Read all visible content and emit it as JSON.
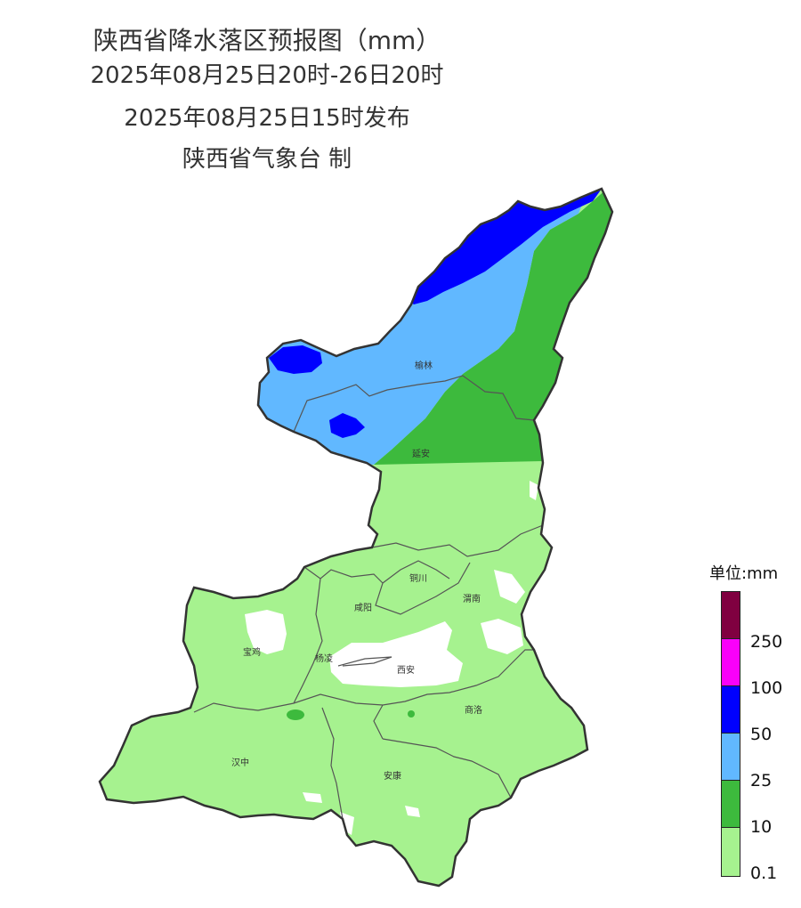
{
  "header": {
    "title": "陕西省降水落区预报图（mm）",
    "period": "2025年08月25日20时-26日20时",
    "issued": "2025年08月25日15时发布",
    "agency": "陕西省气象台 制"
  },
  "cities": [
    "榆林",
    "延安",
    "铜川",
    "渭南",
    "咸阳",
    "宝鸡",
    "杨凌",
    "西安",
    "商洛",
    "汉中",
    "安康"
  ],
  "legend": {
    "unit_label": "单位:mm",
    "levels": [
      {
        "label": "0.1",
        "color": "#a6f28f"
      },
      {
        "label": "10",
        "color": "#3dba3d"
      },
      {
        "label": "25",
        "color": "#61b8ff"
      },
      {
        "label": "50",
        "color": "#0000ff"
      },
      {
        "label": "100",
        "color": "#fa00fa"
      },
      {
        "label": "250",
        "color": "#800040"
      }
    ]
  }
}
